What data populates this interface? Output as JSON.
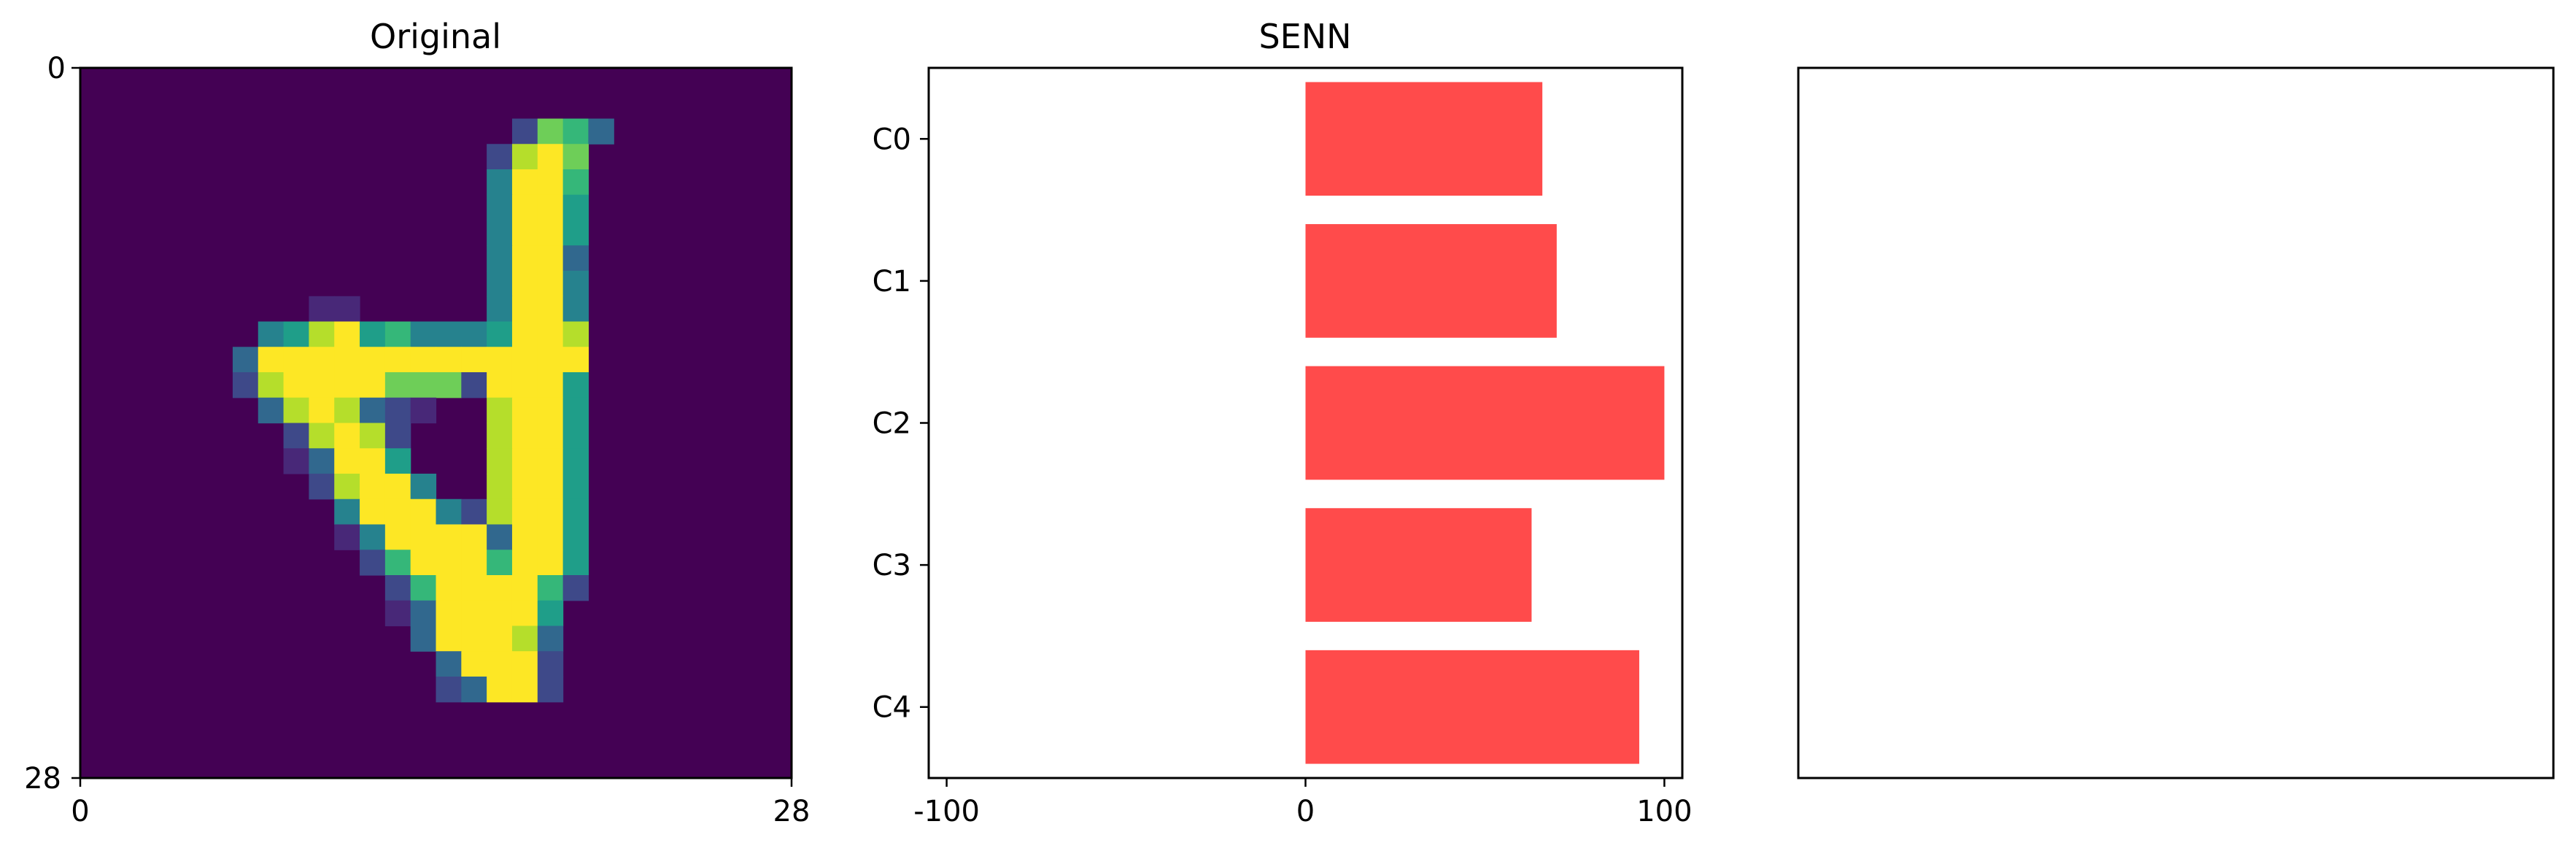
{
  "colors": {
    "bar": "#ff4b4b",
    "image_background": "#440154",
    "axis": "#000000",
    "viridis": [
      "#440154",
      "#482878",
      "#3e4989",
      "#31688e",
      "#26828e",
      "#1f9e89",
      "#35b779",
      "#6ece58",
      "#b5de2b",
      "#fde725"
    ]
  },
  "panels": {
    "original": {
      "title": "Original",
      "ticks": {
        "y_top": "0",
        "y_bottom": "28",
        "x_left": "0",
        "x_right": "28"
      }
    },
    "senn": {
      "title": "SENN"
    },
    "empty": {
      "title": ""
    }
  },
  "chart_data": [
    {
      "type": "heatmap",
      "title": "Original",
      "rows": 28,
      "cols": 28,
      "xlim": [
        0,
        28
      ],
      "ylim": [
        28,
        0
      ],
      "colormap": "viridis",
      "value_scale": "0-9",
      "cells": [
        [
          2,
          17,
          2
        ],
        [
          2,
          18,
          7
        ],
        [
          2,
          19,
          6
        ],
        [
          2,
          20,
          3
        ],
        [
          3,
          16,
          2
        ],
        [
          3,
          17,
          8
        ],
        [
          3,
          18,
          9
        ],
        [
          3,
          19,
          7
        ],
        [
          4,
          16,
          4
        ],
        [
          4,
          17,
          9
        ],
        [
          4,
          18,
          9
        ],
        [
          4,
          19,
          6
        ],
        [
          5,
          16,
          4
        ],
        [
          5,
          17,
          9
        ],
        [
          5,
          18,
          9
        ],
        [
          5,
          19,
          5
        ],
        [
          6,
          16,
          4
        ],
        [
          6,
          17,
          9
        ],
        [
          6,
          18,
          9
        ],
        [
          6,
          19,
          5
        ],
        [
          7,
          16,
          4
        ],
        [
          7,
          17,
          9
        ],
        [
          7,
          18,
          9
        ],
        [
          7,
          19,
          3
        ],
        [
          8,
          16,
          4
        ],
        [
          8,
          17,
          9
        ],
        [
          8,
          18,
          9
        ],
        [
          8,
          19,
          4
        ],
        [
          9,
          9,
          1
        ],
        [
          9,
          10,
          1
        ],
        [
          9,
          16,
          4
        ],
        [
          9,
          17,
          9
        ],
        [
          9,
          18,
          9
        ],
        [
          9,
          19,
          4
        ],
        [
          10,
          7,
          4
        ],
        [
          10,
          8,
          5
        ],
        [
          10,
          9,
          8
        ],
        [
          10,
          10,
          9
        ],
        [
          10,
          11,
          5
        ],
        [
          10,
          12,
          6
        ],
        [
          10,
          13,
          4
        ],
        [
          10,
          14,
          4
        ],
        [
          10,
          15,
          4
        ],
        [
          10,
          16,
          5
        ],
        [
          10,
          17,
          9
        ],
        [
          10,
          18,
          9
        ],
        [
          10,
          19,
          8
        ],
        [
          11,
          6,
          3
        ],
        [
          11,
          7,
          9
        ],
        [
          11,
          8,
          9
        ],
        [
          11,
          9,
          9
        ],
        [
          11,
          10,
          9
        ],
        [
          11,
          11,
          9
        ],
        [
          11,
          12,
          9
        ],
        [
          11,
          13,
          9
        ],
        [
          11,
          14,
          9
        ],
        [
          11,
          15,
          9
        ],
        [
          11,
          16,
          9
        ],
        [
          11,
          17,
          9
        ],
        [
          11,
          18,
          9
        ],
        [
          11,
          19,
          9
        ],
        [
          12,
          6,
          2
        ],
        [
          12,
          7,
          8
        ],
        [
          12,
          8,
          9
        ],
        [
          12,
          9,
          9
        ],
        [
          12,
          10,
          9
        ],
        [
          12,
          11,
          9
        ],
        [
          12,
          12,
          7
        ],
        [
          12,
          13,
          7
        ],
        [
          12,
          14,
          7
        ],
        [
          12,
          15,
          2
        ],
        [
          12,
          16,
          9
        ],
        [
          12,
          17,
          9
        ],
        [
          12,
          18,
          9
        ],
        [
          12,
          19,
          5
        ],
        [
          13,
          7,
          3
        ],
        [
          13,
          8,
          8
        ],
        [
          13,
          9,
          9
        ],
        [
          13,
          10,
          8
        ],
        [
          13,
          11,
          3
        ],
        [
          13,
          12,
          2
        ],
        [
          13,
          13,
          1
        ],
        [
          13,
          16,
          8
        ],
        [
          13,
          17,
          9
        ],
        [
          13,
          18,
          9
        ],
        [
          13,
          19,
          5
        ],
        [
          14,
          8,
          2
        ],
        [
          14,
          9,
          8
        ],
        [
          14,
          10,
          9
        ],
        [
          14,
          11,
          8
        ],
        [
          14,
          12,
          2
        ],
        [
          14,
          16,
          8
        ],
        [
          14,
          17,
          9
        ],
        [
          14,
          18,
          9
        ],
        [
          14,
          19,
          5
        ],
        [
          15,
          8,
          1
        ],
        [
          15,
          9,
          3
        ],
        [
          15,
          10,
          9
        ],
        [
          15,
          11,
          9
        ],
        [
          15,
          12,
          5
        ],
        [
          15,
          16,
          8
        ],
        [
          15,
          17,
          9
        ],
        [
          15,
          18,
          9
        ],
        [
          15,
          19,
          5
        ],
        [
          16,
          9,
          2
        ],
        [
          16,
          10,
          8
        ],
        [
          16,
          11,
          9
        ],
        [
          16,
          12,
          9
        ],
        [
          16,
          13,
          4
        ],
        [
          16,
          16,
          8
        ],
        [
          16,
          17,
          9
        ],
        [
          16,
          18,
          9
        ],
        [
          16,
          19,
          5
        ],
        [
          17,
          10,
          4
        ],
        [
          17,
          11,
          9
        ],
        [
          17,
          12,
          9
        ],
        [
          17,
          13,
          9
        ],
        [
          17,
          14,
          4
        ],
        [
          17,
          15,
          2
        ],
        [
          17,
          16,
          8
        ],
        [
          17,
          17,
          9
        ],
        [
          17,
          18,
          9
        ],
        [
          17,
          19,
          5
        ],
        [
          18,
          10,
          1
        ],
        [
          18,
          11,
          4
        ],
        [
          18,
          12,
          9
        ],
        [
          18,
          13,
          9
        ],
        [
          18,
          14,
          9
        ],
        [
          18,
          15,
          9
        ],
        [
          18,
          16,
          3
        ],
        [
          18,
          17,
          9
        ],
        [
          18,
          18,
          9
        ],
        [
          18,
          19,
          5
        ],
        [
          19,
          11,
          2
        ],
        [
          19,
          12,
          6
        ],
        [
          19,
          13,
          9
        ],
        [
          19,
          14,
          9
        ],
        [
          19,
          15,
          9
        ],
        [
          19,
          16,
          6
        ],
        [
          19,
          17,
          9
        ],
        [
          19,
          18,
          9
        ],
        [
          19,
          19,
          5
        ],
        [
          20,
          12,
          2
        ],
        [
          20,
          13,
          6
        ],
        [
          20,
          14,
          9
        ],
        [
          20,
          15,
          9
        ],
        [
          20,
          16,
          9
        ],
        [
          20,
          17,
          9
        ],
        [
          20,
          18,
          6
        ],
        [
          20,
          19,
          2
        ],
        [
          21,
          12,
          1
        ],
        [
          21,
          13,
          3
        ],
        [
          21,
          14,
          9
        ],
        [
          21,
          15,
          9
        ],
        [
          21,
          16,
          9
        ],
        [
          21,
          17,
          9
        ],
        [
          21,
          18,
          5
        ],
        [
          22,
          13,
          3
        ],
        [
          22,
          14,
          9
        ],
        [
          22,
          15,
          9
        ],
        [
          22,
          16,
          9
        ],
        [
          22,
          17,
          8
        ],
        [
          22,
          18,
          3
        ],
        [
          23,
          14,
          3
        ],
        [
          23,
          15,
          9
        ],
        [
          23,
          16,
          9
        ],
        [
          23,
          17,
          9
        ],
        [
          23,
          18,
          2
        ],
        [
          24,
          14,
          2
        ],
        [
          24,
          15,
          3
        ],
        [
          24,
          16,
          9
        ],
        [
          24,
          17,
          9
        ],
        [
          24,
          18,
          2
        ]
      ]
    },
    {
      "type": "bar",
      "orientation": "horizontal",
      "title": "SENN",
      "categories": [
        "C0",
        "C1",
        "C2",
        "C3",
        "C4"
      ],
      "values": [
        66,
        70,
        100,
        63,
        93
      ],
      "xlim": [
        -105,
        105
      ],
      "xticks": [
        "-100",
        "0",
        "100"
      ],
      "xlabel": "",
      "ylabel": "",
      "grid": false
    },
    {
      "type": "bar",
      "title": "",
      "values": [],
      "xticks": [],
      "yticks": []
    }
  ]
}
